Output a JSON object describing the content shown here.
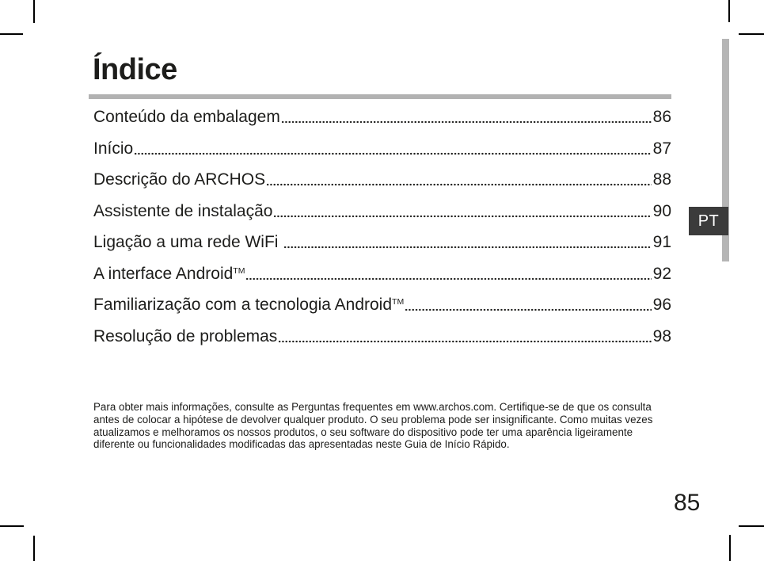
{
  "page": {
    "title": "Índice",
    "number": "85",
    "language_tab": "PT"
  },
  "toc": {
    "items": [
      {
        "label": "Conteúdo da embalagem",
        "sup": "",
        "page": "86"
      },
      {
        "label": "Início",
        "sup": "",
        "page": "87"
      },
      {
        "label": "Descrição do ARCHOS",
        "sup": "",
        "page": "88"
      },
      {
        "label": "Assistente de instalação",
        "sup": "",
        "page": "90"
      },
      {
        "label": "Ligação a uma rede WiFi ",
        "sup": "",
        "page": "91"
      },
      {
        "label": "A interface Android",
        "sup": "TM",
        "page": "92"
      },
      {
        "label": "Familiarização com a tecnologia Android",
        "sup": "TM",
        "page": "96"
      },
      {
        "label": "Resolução de problemas",
        "sup": "",
        "page": "98"
      }
    ]
  },
  "footer": {
    "note": "Para obter mais informações, consulte as Perguntas frequentes em www.archos.com. Certifique-se de que os consulta antes de colocar a hipótese de devolver qualquer produto. O seu problema pode ser insignificante. Como muitas vezes atualizamos e melhoramos os nossos produtos, o seu software do dispositivo pode ter uma aparência ligeiramente diferente ou funcionalidades modificadas das apresentadas neste Guia de Início Rápido."
  },
  "colors": {
    "text": "#1d1d1b",
    "divider": "#b2b2b2",
    "side_bar": "#b5b5b5",
    "tab_background": "#3b3b3b",
    "tab_text": "#ffffff"
  }
}
